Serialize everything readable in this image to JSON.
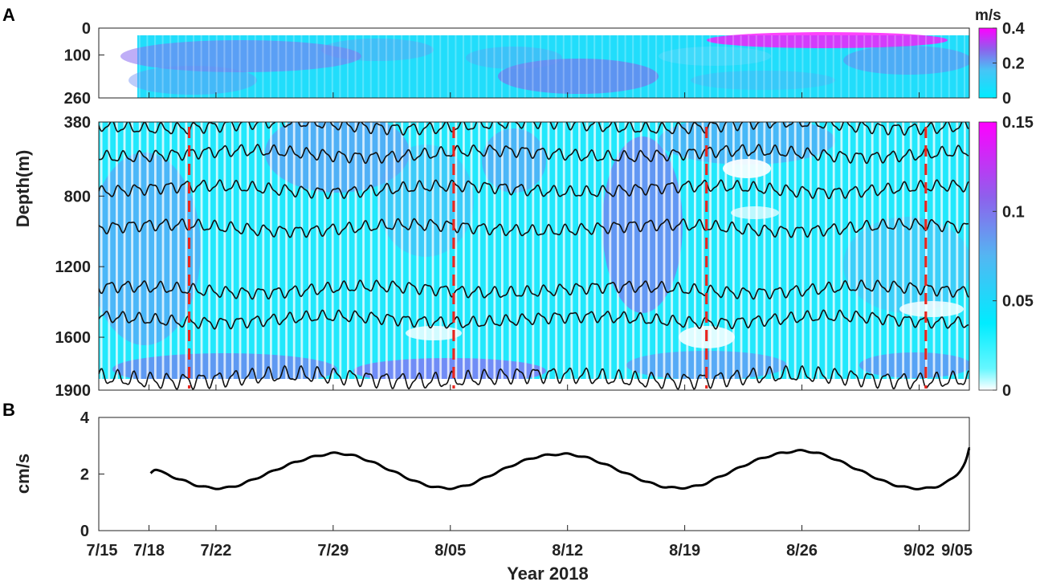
{
  "panels": {
    "a_label": "A",
    "b_label": "B"
  },
  "x_axis": {
    "label": "Year 2018",
    "ticks": [
      {
        "day": 0,
        "label": "7/15"
      },
      {
        "day": 3,
        "label": "7/18"
      },
      {
        "day": 7,
        "label": "7/22"
      },
      {
        "day": 14,
        "label": "7/29"
      },
      {
        "day": 21,
        "label": "8/05"
      },
      {
        "day": 28,
        "label": "8/12"
      },
      {
        "day": 35,
        "label": "8/19"
      },
      {
        "day": 42,
        "label": "8/26"
      },
      {
        "day": 49,
        "label": "9/02"
      },
      {
        "day": 52,
        "label": "9/05"
      }
    ]
  },
  "chart_data": [
    {
      "type": "heatmap",
      "panel": "A-upper",
      "xlabel": "",
      "ylabel": "",
      "x_range_days": [
        0,
        52
      ],
      "data_start_day": 3,
      "y_ticks": [
        0,
        100,
        260
      ],
      "ylim": [
        0,
        260
      ],
      "colorbar": {
        "unit": "m/s",
        "ticks": [
          0,
          0.2,
          0.4
        ],
        "range": [
          0,
          0.4
        ]
      },
      "colormap": [
        "#ffffff",
        "#00f0ff",
        "#4db8ff",
        "#8a5cf0",
        "#ff00ff"
      ]
    },
    {
      "type": "heatmap",
      "panel": "A-lower",
      "ylabel": "Depth(m)",
      "x_range_days": [
        0,
        52
      ],
      "y_ticks": [
        380,
        800,
        1200,
        1600,
        1900
      ],
      "ylim": [
        380,
        1900
      ],
      "colorbar": {
        "unit": "",
        "ticks": [
          0,
          0.05,
          0.1,
          0.15
        ],
        "range": [
          0,
          0.15
        ]
      },
      "isotherm_depths": [
        400,
        560,
        760,
        980,
        1330,
        1500,
        1830
      ],
      "dashed_vertical_lines_days": [
        5.4,
        21.2,
        36.3,
        49.4
      ],
      "dashed_line_color": "#e8261f"
    },
    {
      "type": "line",
      "panel": "B",
      "ylabel": "cm/s",
      "ylim": [
        0,
        4
      ],
      "y_ticks": [
        0,
        2,
        4
      ],
      "series": [
        {
          "x": [
            3.1,
            3.4,
            4,
            5,
            6,
            7,
            8,
            9,
            10,
            11,
            12,
            13,
            14,
            15,
            16,
            17,
            18,
            19,
            20,
            21,
            22,
            23,
            24,
            25,
            26,
            27,
            28,
            29,
            30,
            31,
            32,
            33,
            34,
            35,
            36,
            37,
            38,
            39,
            40,
            41,
            42,
            43,
            44,
            45,
            46,
            47,
            48,
            49,
            50,
            51,
            51.7,
            52
          ],
          "y": [
            2.05,
            2.17,
            2.0,
            1.78,
            1.58,
            1.5,
            1.55,
            1.75,
            2.0,
            2.25,
            2.47,
            2.63,
            2.73,
            2.68,
            2.5,
            2.25,
            1.98,
            1.72,
            1.55,
            1.5,
            1.6,
            1.85,
            2.12,
            2.38,
            2.58,
            2.68,
            2.7,
            2.6,
            2.4,
            2.15,
            1.9,
            1.67,
            1.53,
            1.52,
            1.62,
            1.88,
            2.15,
            2.42,
            2.63,
            2.76,
            2.82,
            2.73,
            2.52,
            2.25,
            1.98,
            1.72,
            1.55,
            1.49,
            1.55,
            1.85,
            2.35,
            2.9
          ]
        }
      ]
    }
  ]
}
